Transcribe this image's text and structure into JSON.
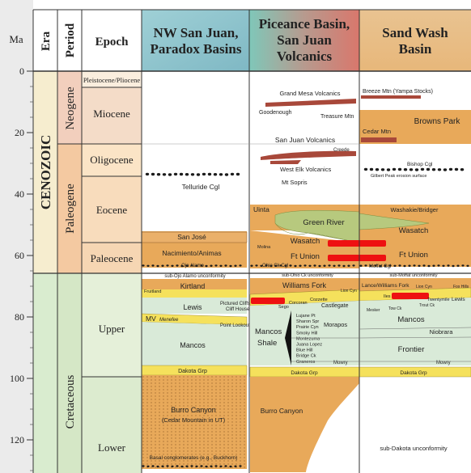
{
  "header": {
    "ma": "Ma",
    "era": "Era",
    "period": "Period",
    "epoch": "Epoch",
    "col1": [
      "NW San Juan,",
      "Paradox Basins"
    ],
    "col2": [
      "Piceance Basin,",
      "San Juan",
      "Volcanics"
    ],
    "col3": [
      "Sand Wash",
      "Basin"
    ]
  },
  "ma_ticks": [
    0,
    20,
    40,
    60,
    80,
    100,
    120
  ],
  "eras": {
    "cenozoic": "CENOZOIC"
  },
  "periods": {
    "neogene": "Neogene",
    "paleogene": "Paleogene",
    "cretaceous": "Cretaceous"
  },
  "epochs": {
    "pleistocene": "Pleistocene/Pliocene",
    "miocene": "Miocene",
    "oligocene": "Oligocene",
    "eocene": "Eocene",
    "paleocene": "Paleocene",
    "upper": "Upper",
    "lower": "Lower"
  },
  "col1_units": {
    "telluride": "Telluride Cgl",
    "san_jose": "San José",
    "nacimiento": "Nacimiento/Animas",
    "ojo_alamo": "Ojo Alamo",
    "sub_ojo": "sub-Ojo Alamo unconformity",
    "kirtland": "Kirtland",
    "fruitland": "Fruitland",
    "lewis": "Lewis",
    "pictured_cliffs": "Pictured Cliffs",
    "cliff_house": "Cliff House",
    "mv": "MV",
    "menefee": "Menefee",
    "point_lookout": "Point Lookout",
    "mancos": "Mancos",
    "dakota": "Dakota Grp",
    "burro_canyon": "Burro Canyon",
    "cedar_mtn": "(Cedar Mountain in UT)",
    "basal": "Basal conglomerates (e.g., Buckhorn)"
  },
  "col2_units": {
    "grand_mesa": "Grand Mesa Volcanics",
    "goodenough": "Goodenough",
    "treasure_mtn": "Treasure Mtn",
    "san_juan_volc": "San Juan Volcanics",
    "creede": "Creede",
    "west_elk": "West Elk Volcanics",
    "mt_sopris": "Mt Sopris",
    "uinta": "Uinta",
    "green_river": "Green River",
    "wasatch": "Wasatch",
    "molina": "Molina",
    "ft_union": "Ft Union",
    "ohio_ck": "Ohio Ck Cgl",
    "sub_ohio": "sub-Ohio Ck unconformity",
    "williams_fork": "Williams Fork",
    "lion_cyn": "Lion Cyn",
    "cozzette": "Cozzette",
    "corcoran": "Corcoran",
    "sego": "Sego",
    "castlegate": "Castlegate",
    "morapos": "Morapos",
    "mancos": "Mancos",
    "shale": "Shale",
    "shale_list": [
      "Lujane Pt",
      "Sharon Spr",
      "Prairie Cyn",
      "Smoky Hill",
      "Montezuma",
      "Juana Lopez",
      "Blue Hill",
      "Bridge Ck",
      "Graneros"
    ],
    "mowry": "Mowry",
    "dakota": "Dakota Grp",
    "burro_canyon": "Burro Canyon"
  },
  "col3_units": {
    "breeze_mtn": "Breeze Mtn (Yampa Stocks)",
    "browns_park": "Browns Park",
    "cedar_mtn": "Cedar Mtn",
    "bishop": "Bishop Cgl",
    "gilbert": "Gilbert Peak erosion surface",
    "washakie": "Washakie/Bridger",
    "wasatch": "Wasatch",
    "ft_union": "Ft Union",
    "moffat": "Moffat Cgl",
    "sub_moffat": "sub-Moffat unconformity",
    "lance": "Lance/Williams Fork",
    "lion_cyn": "Lion Cyn",
    "fox_hills": "Fox Hills",
    "iles": "Iles",
    "twentymile": "Twentymile",
    "trout_ck": "Trout Ck",
    "lewis": "Lewis",
    "mesker": "Mesker",
    "tow_ck": "Tow Ck",
    "mancos": "Mancos",
    "niobrara": "Niobrara",
    "frontier": "Frontier",
    "mowry": "Mowry",
    "dakota": "Dakota Grp",
    "sub_dakota": "sub-Dakota unconformity"
  },
  "colors": {
    "sand": "#e8a95a",
    "mancos": "#d9ead8",
    "yellow": "#f5e15c",
    "green": "#b7c97e",
    "volcanic": "#a8483a",
    "red_bar": "#ee1111",
    "cenozoic": "#f6edcf",
    "paleogene": "#f4c9a1",
    "neogene": "#f2cfbd",
    "cretaceous": "#d5e7c6"
  }
}
